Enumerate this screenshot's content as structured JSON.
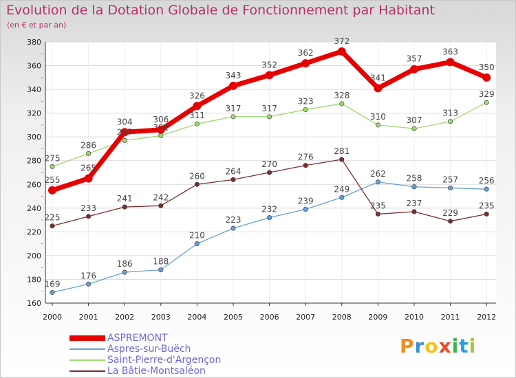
{
  "title": "Evolution de la Dotation Globale de Fonctionnement par Habitant",
  "subtitle": "(en € et par an)",
  "brand": {
    "letters": [
      "P",
      "r",
      "o",
      "x",
      "i",
      "t",
      "i"
    ],
    "colors": [
      "#f28c1e",
      "#3b8fd8",
      "#f2c21e",
      "#e84c2c",
      "#3fb04a",
      "#2aa0d8",
      "#a0c83c"
    ]
  },
  "chart_data": {
    "type": "line",
    "title": "Evolution de la Dotation Globale de Fonctionnement par Habitant",
    "subtitle": "(en € et par an)",
    "categories": [
      "2000",
      "2001",
      "2002",
      "2003",
      "2004",
      "2005",
      "2006",
      "2007",
      "2008",
      "2009",
      "2010",
      "2011",
      "2012"
    ],
    "ylim": [
      160,
      380
    ],
    "yticks": [
      160,
      180,
      200,
      220,
      240,
      260,
      280,
      300,
      320,
      340,
      360,
      380
    ],
    "grid": true,
    "legend_position": "bottom-left",
    "series": [
      {
        "name": "ASPREMONT",
        "color": "#e60000",
        "width": "thick",
        "values": [
          255,
          265,
          304,
          306,
          326,
          343,
          352,
          362,
          372,
          341,
          357,
          363,
          350
        ],
        "labels": [
          "255",
          "265",
          "304",
          "306",
          "326",
          "343",
          "352",
          "362",
          "372",
          "341",
          "357",
          "363",
          "350"
        ]
      },
      {
        "name": "Aspres-sur-Buëch",
        "color": "#6a9fd1",
        "width": "thin",
        "values": [
          169,
          176,
          186,
          188,
          210,
          223,
          232,
          239,
          249,
          262,
          258,
          257,
          256
        ],
        "labels": [
          "169",
          "176",
          "186",
          "188",
          "210",
          "223",
          "232",
          "239",
          "249",
          "262",
          "258",
          "257",
          "256"
        ]
      },
      {
        "name": "Saint-Pierre-d'Argençon",
        "color": "#9ed96e",
        "width": "thin",
        "values": [
          275,
          286,
          297,
          301,
          311,
          317,
          317,
          323,
          328,
          310,
          307,
          313,
          329
        ],
        "labels": [
          "275",
          "286",
          "297",
          "301",
          "311",
          "317",
          "317",
          "323",
          "328",
          "310",
          "307",
          "313",
          "329"
        ]
      },
      {
        "name": "La Bâtie-Montsaléon",
        "color": "#7a2e2e",
        "width": "thin",
        "values": [
          225,
          233,
          241,
          242,
          260,
          264,
          270,
          276,
          281,
          235,
          237,
          229,
          235
        ],
        "labels": [
          "225",
          "233",
          "241",
          "242",
          "260",
          "264",
          "270",
          "276",
          "281",
          "235",
          "237",
          "229",
          "235"
        ]
      }
    ]
  }
}
